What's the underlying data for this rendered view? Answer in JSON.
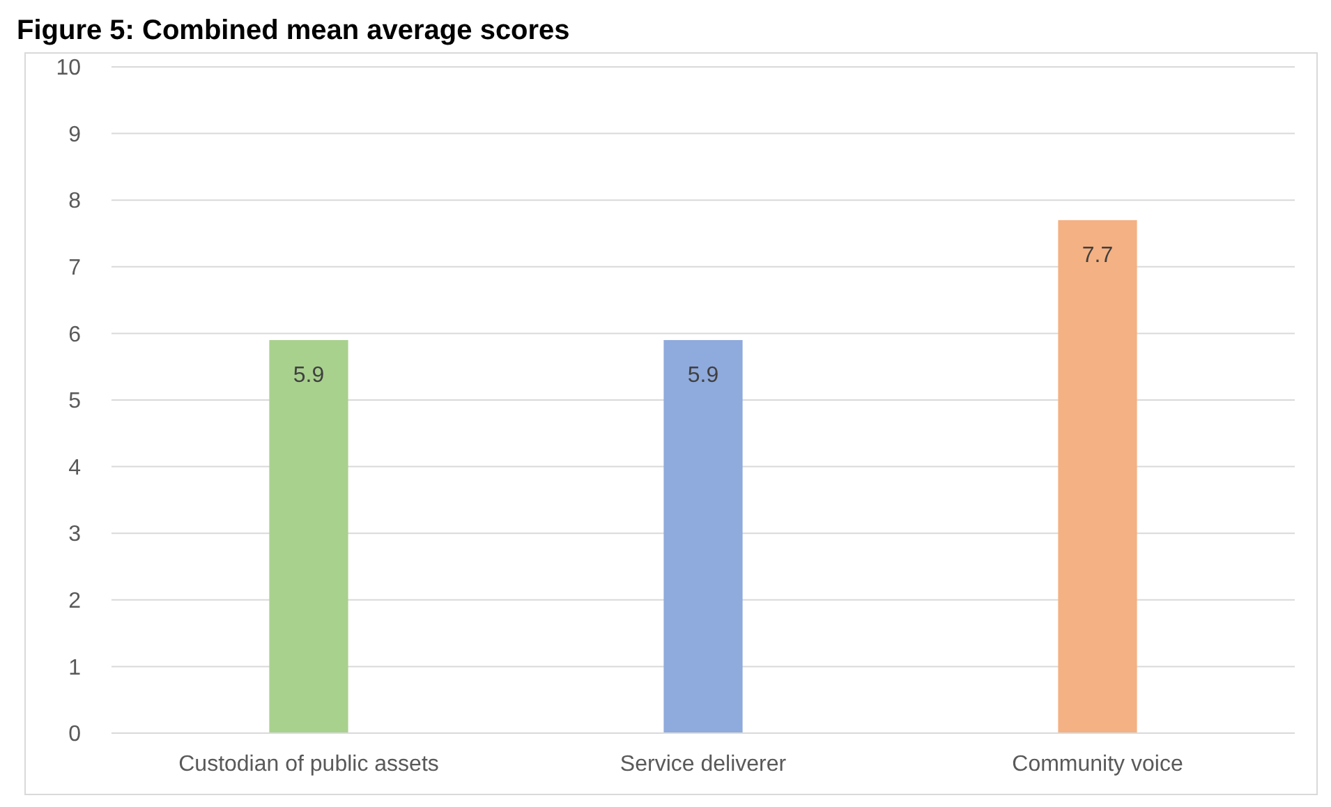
{
  "chart_data": {
    "type": "bar",
    "title": "Figure 5: Combined mean average scores",
    "categories": [
      "Custodian of public assets",
      "Service deliverer",
      "Community voice"
    ],
    "values": [
      5.9,
      5.9,
      7.7
    ],
    "colors": [
      "#a9d18e",
      "#8faadc",
      "#f4b183"
    ],
    "ylim": [
      0,
      10
    ],
    "yticks": [
      0,
      1,
      2,
      3,
      4,
      5,
      6,
      7,
      8,
      9,
      10
    ],
    "grid": "y",
    "data_labels": true
  }
}
